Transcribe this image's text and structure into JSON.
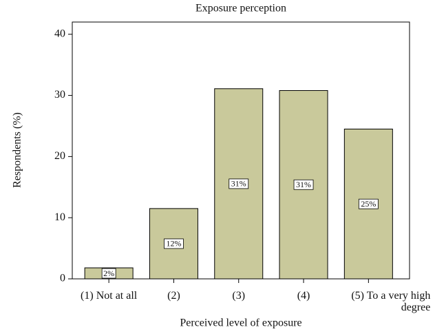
{
  "chart_data": {
    "type": "bar",
    "title": "Exposure perception",
    "x_label": "Perceived level of exposure",
    "y_label": "Respondents (%)",
    "categories": [
      "(1) Not at all",
      "(2)",
      "(3)",
      "(4)",
      "(5) To a very high degree"
    ],
    "values": [
      1.8,
      11.5,
      31.1,
      30.8,
      24.5
    ],
    "value_labels": [
      "2%",
      "12%",
      "31%",
      "31%",
      "25%"
    ],
    "color": "#c9c99b",
    "ylim": [
      0,
      42
    ],
    "yticks": [
      0,
      10,
      20,
      30,
      40
    ],
    "grid": false
  }
}
